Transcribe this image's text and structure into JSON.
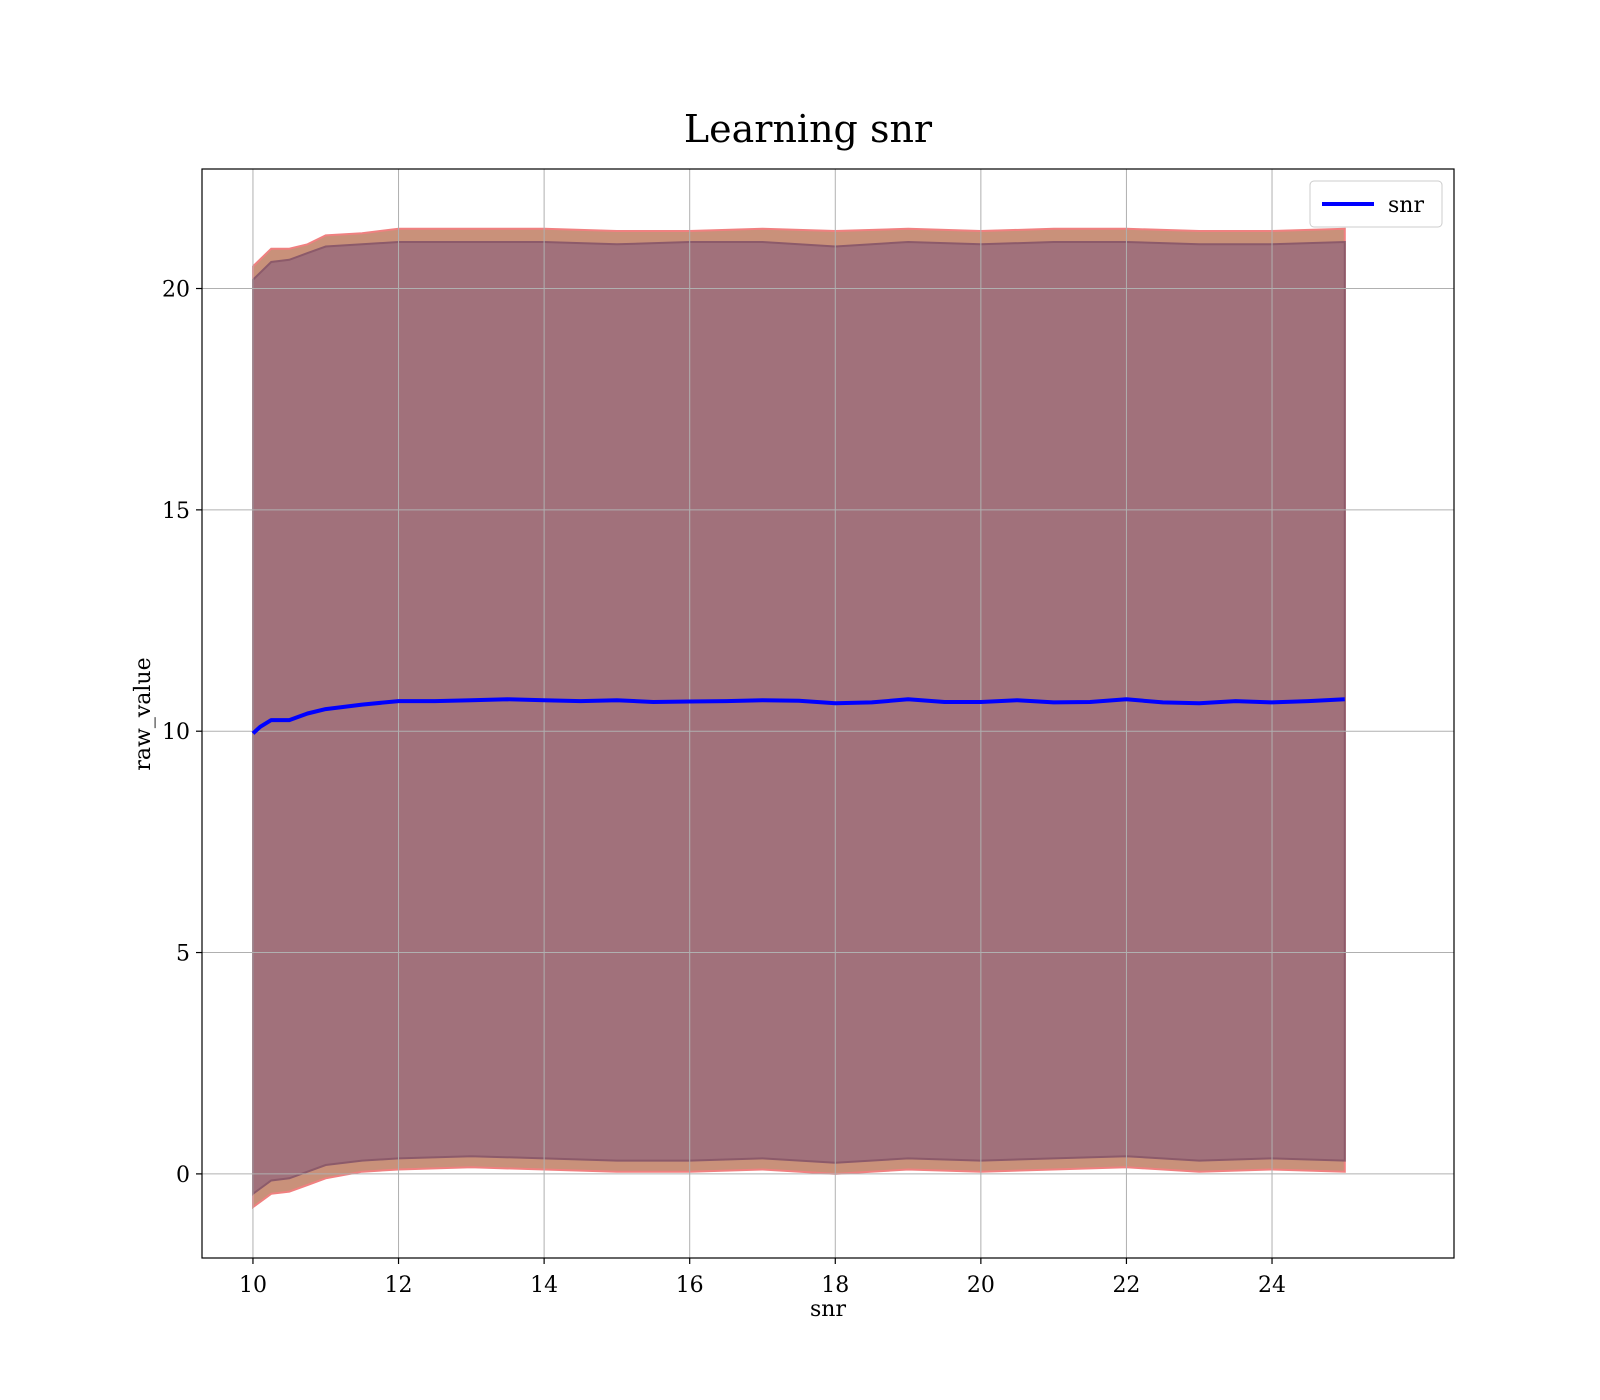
{
  "chart_data": {
    "type": "line",
    "title": "Learning snr",
    "xlabel": "snr",
    "ylabel": "raw_value",
    "xlim": [
      9.3,
      26.5
    ],
    "ylim": [
      -1.9,
      22.7
    ],
    "xticks": [
      10,
      12,
      14,
      16,
      18,
      20,
      22,
      24
    ],
    "yticks": [
      0,
      5,
      10,
      15,
      20
    ],
    "grid": true,
    "legend": {
      "position": "top-right",
      "entries": [
        "snr"
      ]
    },
    "series": [
      {
        "name": "snr",
        "color": "#0000ff",
        "x": [
          10.0,
          10.1,
          10.25,
          10.5,
          10.75,
          11.0,
          11.25,
          11.5,
          12.0,
          12.5,
          13.0,
          13.5,
          14.0,
          14.5,
          15.0,
          15.5,
          16.0,
          16.5,
          17.0,
          17.5,
          18.0,
          18.5,
          19.0,
          19.5,
          20.0,
          20.5,
          21.0,
          21.5,
          22.0,
          22.5,
          23.0,
          23.5,
          24.0,
          24.5,
          25.0
        ],
        "y": [
          9.95,
          10.1,
          10.25,
          10.25,
          10.4,
          10.5,
          10.55,
          10.6,
          10.68,
          10.68,
          10.7,
          10.72,
          10.7,
          10.68,
          10.7,
          10.66,
          10.67,
          10.68,
          10.7,
          10.69,
          10.63,
          10.65,
          10.72,
          10.66,
          10.66,
          10.7,
          10.65,
          10.66,
          10.72,
          10.65,
          10.63,
          10.68,
          10.65,
          10.68,
          10.72
        ]
      }
    ],
    "bands": [
      {
        "fill": "#c9917a",
        "edge": "#f08080",
        "x": [
          10.0,
          10.25,
          10.5,
          10.75,
          11.0,
          11.5,
          12.0,
          13.0,
          14.0,
          15.0,
          16.0,
          17.0,
          18.0,
          19.0,
          20.0,
          21.0,
          22.0,
          23.0,
          24.0,
          25.0
        ],
        "upper": [
          20.5,
          20.9,
          20.9,
          21.0,
          21.2,
          21.25,
          21.35,
          21.35,
          21.35,
          21.3,
          21.3,
          21.35,
          21.3,
          21.35,
          21.3,
          21.35,
          21.35,
          21.3,
          21.3,
          21.35
        ],
        "lower": [
          -0.75,
          -0.45,
          -0.4,
          -0.25,
          -0.1,
          0.05,
          0.1,
          0.15,
          0.1,
          0.05,
          0.05,
          0.1,
          0.0,
          0.1,
          0.05,
          0.1,
          0.15,
          0.05,
          0.1,
          0.05
        ]
      },
      {
        "fill": "#a1717b",
        "edge": "#8c5a6a",
        "x": [
          10.0,
          10.25,
          10.5,
          10.75,
          11.0,
          11.5,
          12.0,
          13.0,
          14.0,
          15.0,
          16.0,
          17.0,
          18.0,
          19.0,
          20.0,
          21.0,
          22.0,
          23.0,
          24.0,
          25.0
        ],
        "upper": [
          20.2,
          20.6,
          20.65,
          20.8,
          20.95,
          21.0,
          21.05,
          21.05,
          21.05,
          21.0,
          21.05,
          21.05,
          20.95,
          21.05,
          21.0,
          21.05,
          21.05,
          21.0,
          21.0,
          21.05
        ],
        "lower": [
          -0.45,
          -0.15,
          -0.1,
          0.05,
          0.2,
          0.3,
          0.35,
          0.4,
          0.35,
          0.3,
          0.3,
          0.35,
          0.25,
          0.35,
          0.3,
          0.35,
          0.4,
          0.3,
          0.35,
          0.3
        ]
      }
    ]
  }
}
